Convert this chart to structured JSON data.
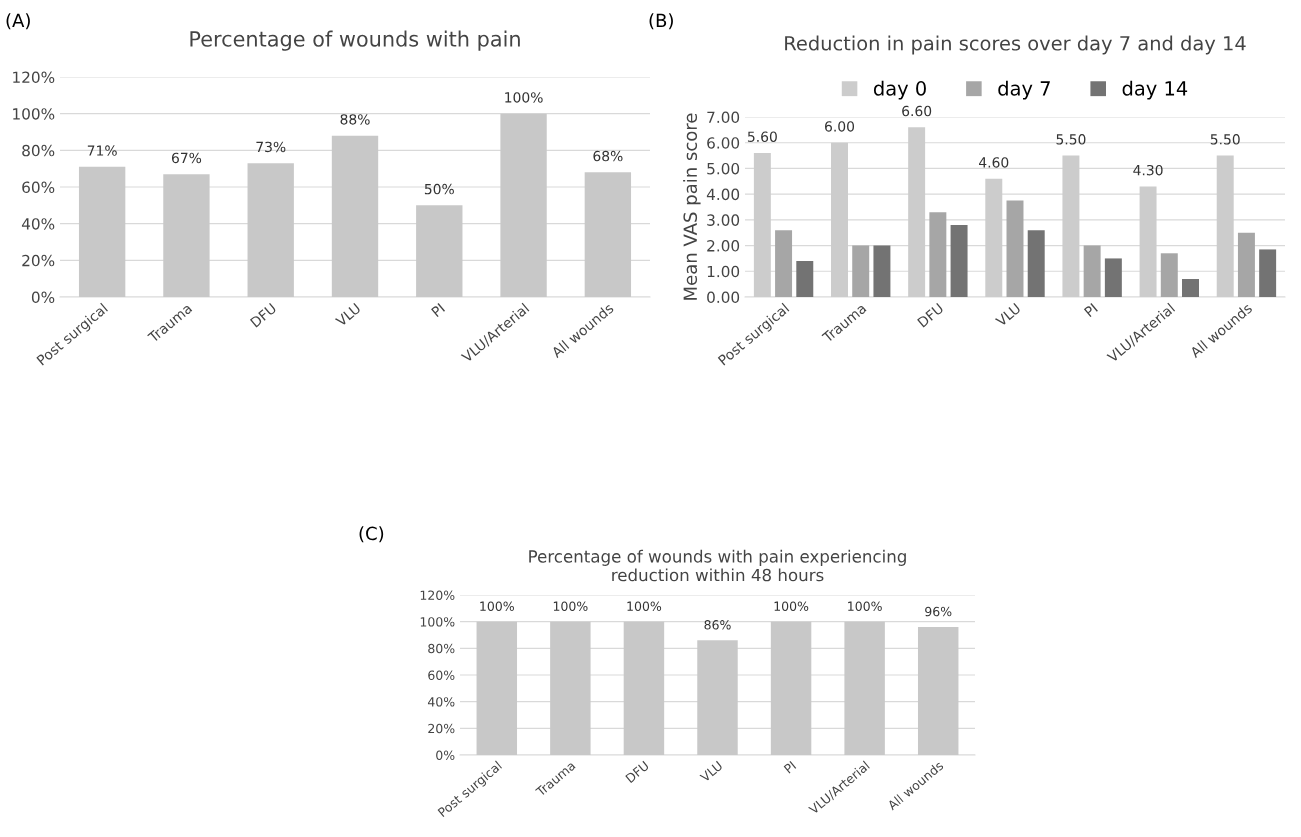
{
  "chart_data": [
    {
      "type": "bar",
      "title": "Percentage of wounds with pain",
      "annotations": [
        "(A)"
      ],
      "categories": [
        "Post surgical",
        "Trauma",
        "DFU",
        "VLU",
        "PI",
        "VLU/Arterial",
        "All wounds"
      ],
      "values": [
        71,
        67,
        73,
        88,
        50,
        100,
        68
      ],
      "value_labels": [
        "71%",
        "67%",
        "73%",
        "88%",
        "50%",
        "100%",
        "68%"
      ],
      "color": "#c8c8c8",
      "ylim": [
        0,
        120
      ],
      "yticks": [
        {
          "value": 0,
          "label": "0%"
        },
        {
          "value": 20,
          "label": "20%"
        },
        {
          "value": 40,
          "label": "40%"
        },
        {
          "value": 60,
          "label": "60%"
        },
        {
          "value": 80,
          "label": "80%"
        },
        {
          "value": 100,
          "label": "100%"
        },
        {
          "value": 120,
          "label": "120%"
        }
      ],
      "grid": "y"
    },
    {
      "type": "bar",
      "title": "Reduction in pain scores over day 7 and day 14",
      "annotations": [
        "(B)"
      ],
      "ylabel": "Mean VAS pain score",
      "categories": [
        "Post surgical",
        "Trauma",
        "DFU",
        "VLU",
        "PI",
        "VLU/Arterial",
        "All wounds"
      ],
      "series": [
        {
          "name": "day 0",
          "color": "#cccccc",
          "values": [
            5.6,
            6.0,
            6.6,
            4.6,
            5.5,
            4.3,
            5.5
          ],
          "value_labels": [
            "5.60",
            "6.00",
            "6.60",
            "4.60",
            "5.50",
            "4.30",
            "5.50"
          ]
        },
        {
          "name": "day 7",
          "color": "#a6a6a6",
          "values": [
            2.6,
            2.0,
            3.3,
            3.75,
            2.0,
            1.7,
            2.5
          ]
        },
        {
          "name": "day 14",
          "color": "#737373",
          "values": [
            1.4,
            2.0,
            2.8,
            2.6,
            1.5,
            0.7,
            1.85
          ]
        }
      ],
      "ylim": [
        0,
        7
      ],
      "yticks": [
        {
          "value": 0,
          "label": "0.00"
        },
        {
          "value": 1,
          "label": "1.00"
        },
        {
          "value": 2,
          "label": "2.00"
        },
        {
          "value": 3,
          "label": "3.00"
        },
        {
          "value": 4,
          "label": "4.00"
        },
        {
          "value": 5,
          "label": "5.00"
        },
        {
          "value": 6,
          "label": "6.00"
        },
        {
          "value": 7,
          "label": "7.00"
        }
      ],
      "grid": "y",
      "legend": "top"
    },
    {
      "type": "bar",
      "title": "Percentage of wounds with pain experiencing\nreduction within 48 hours",
      "annotations": [
        "(C)"
      ],
      "categories": [
        "Post surgical",
        "Trauma",
        "DFU",
        "VLU",
        "PI",
        "VLU/Arterial",
        "All wounds"
      ],
      "values": [
        100,
        100,
        100,
        86,
        100,
        100,
        96
      ],
      "value_labels": [
        "100%",
        "100%",
        "100%",
        "86%",
        "100%",
        "100%",
        "96%"
      ],
      "color": "#c8c8c8",
      "ylim": [
        0,
        120
      ],
      "yticks": [
        {
          "value": 0,
          "label": "0%"
        },
        {
          "value": 20,
          "label": "20%"
        },
        {
          "value": 40,
          "label": "40%"
        },
        {
          "value": 60,
          "label": "60%"
        },
        {
          "value": 80,
          "label": "80%"
        },
        {
          "value": 100,
          "label": "100%"
        },
        {
          "value": 120,
          "label": "120%"
        }
      ],
      "grid": "y"
    }
  ]
}
